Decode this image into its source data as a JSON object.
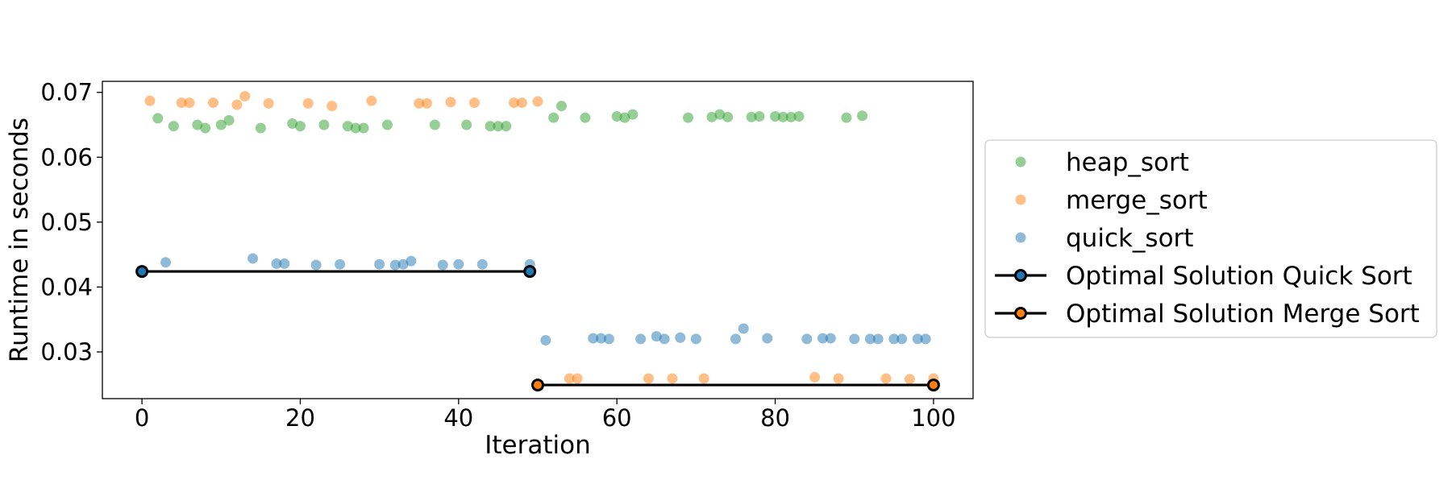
{
  "chart_data": {
    "type": "scatter",
    "xlabel": "Iteration",
    "ylabel": "Runtime in seconds",
    "xlim": [
      -5,
      105
    ],
    "ylim": [
      0.0228,
      0.0717
    ],
    "x_ticks": [
      0,
      20,
      40,
      60,
      80,
      100
    ],
    "y_ticks": [
      0.03,
      0.04,
      0.05,
      0.06,
      0.07
    ],
    "x_tick_labels": [
      "0",
      "20",
      "40",
      "60",
      "80",
      "100"
    ],
    "y_tick_labels": [
      "0.03",
      "0.04",
      "0.05",
      "0.06",
      "0.07"
    ],
    "grid": false,
    "legend_position": "right, outside plot",
    "series": [
      {
        "name": "heap_sort",
        "kind": "scatter",
        "color": "#2ca02c",
        "points": [
          [
            2,
            0.066
          ],
          [
            4,
            0.0648
          ],
          [
            7,
            0.065
          ],
          [
            8,
            0.0645
          ],
          [
            10,
            0.065
          ],
          [
            11,
            0.0657
          ],
          [
            15,
            0.0645
          ],
          [
            19,
            0.0652
          ],
          [
            20,
            0.0648
          ],
          [
            23,
            0.065
          ],
          [
            26,
            0.0648
          ],
          [
            27,
            0.0645
          ],
          [
            28,
            0.0645
          ],
          [
            31,
            0.065
          ],
          [
            37,
            0.065
          ],
          [
            41,
            0.065
          ],
          [
            44,
            0.0648
          ],
          [
            45,
            0.0648
          ],
          [
            46,
            0.0648
          ],
          [
            52,
            0.0661
          ],
          [
            53,
            0.0679
          ],
          [
            56,
            0.0661
          ],
          [
            60,
            0.0663
          ],
          [
            61,
            0.0661
          ],
          [
            62,
            0.0666
          ],
          [
            69,
            0.0661
          ],
          [
            72,
            0.0662
          ],
          [
            73,
            0.0666
          ],
          [
            74,
            0.0662
          ],
          [
            77,
            0.0662
          ],
          [
            78,
            0.0663
          ],
          [
            80,
            0.0663
          ],
          [
            81,
            0.0662
          ],
          [
            82,
            0.0662
          ],
          [
            83,
            0.0663
          ],
          [
            89,
            0.0661
          ],
          [
            91,
            0.0664
          ]
        ]
      },
      {
        "name": "merge_sort",
        "kind": "scatter",
        "color": "#ff7f0e",
        "points": [
          [
            1,
            0.0687
          ],
          [
            5,
            0.0684
          ],
          [
            6,
            0.0684
          ],
          [
            9,
            0.0684
          ],
          [
            12,
            0.0681
          ],
          [
            13,
            0.0694
          ],
          [
            16,
            0.0683
          ],
          [
            21,
            0.0683
          ],
          [
            24,
            0.0679
          ],
          [
            29,
            0.0687
          ],
          [
            35,
            0.0683
          ],
          [
            36,
            0.0683
          ],
          [
            39,
            0.0685
          ],
          [
            42,
            0.0684
          ],
          [
            47,
            0.0684
          ],
          [
            48,
            0.0684
          ],
          [
            50,
            0.0686
          ],
          [
            54,
            0.0259
          ],
          [
            55,
            0.0259
          ],
          [
            64,
            0.0259
          ],
          [
            67,
            0.0259
          ],
          [
            71,
            0.0259
          ],
          [
            85,
            0.0261
          ],
          [
            88,
            0.0259
          ],
          [
            94,
            0.0259
          ],
          [
            97,
            0.0258
          ],
          [
            100,
            0.0259
          ]
        ]
      },
      {
        "name": "quick_sort",
        "kind": "scatter",
        "color": "#1f77b4",
        "points": [
          [
            3,
            0.0438
          ],
          [
            14,
            0.0444
          ],
          [
            17,
            0.0436
          ],
          [
            18,
            0.0436
          ],
          [
            22,
            0.0434
          ],
          [
            25,
            0.0435
          ],
          [
            30,
            0.0435
          ],
          [
            32,
            0.0434
          ],
          [
            33,
            0.0435
          ],
          [
            34,
            0.044
          ],
          [
            38,
            0.0434
          ],
          [
            40,
            0.0435
          ],
          [
            43,
            0.0435
          ],
          [
            49,
            0.0435
          ],
          [
            51,
            0.0318
          ],
          [
            57,
            0.0321
          ],
          [
            58,
            0.0321
          ],
          [
            59,
            0.032
          ],
          [
            63,
            0.032
          ],
          [
            65,
            0.0324
          ],
          [
            66,
            0.032
          ],
          [
            68,
            0.0322
          ],
          [
            70,
            0.032
          ],
          [
            75,
            0.032
          ],
          [
            76,
            0.0336
          ],
          [
            79,
            0.0321
          ],
          [
            84,
            0.032
          ],
          [
            86,
            0.0321
          ],
          [
            87,
            0.0321
          ],
          [
            90,
            0.032
          ],
          [
            92,
            0.032
          ],
          [
            93,
            0.032
          ],
          [
            95,
            0.032
          ],
          [
            96,
            0.032
          ],
          [
            98,
            0.032
          ],
          [
            99,
            0.032
          ]
        ]
      },
      {
        "name": "Optimal Solution Quick Sort",
        "kind": "line",
        "color": "#000000",
        "marker_edge": "#000000",
        "marker_fill": "#1f77b4",
        "points": [
          [
            0,
            0.0424
          ],
          [
            49,
            0.0424
          ]
        ]
      },
      {
        "name": "Optimal Solution Merge Sort",
        "kind": "line",
        "color": "#000000",
        "marker_edge": "#000000",
        "marker_fill": "#ff7f0e",
        "points": [
          [
            50,
            0.0249
          ],
          [
            100,
            0.0249
          ]
        ]
      }
    ]
  }
}
